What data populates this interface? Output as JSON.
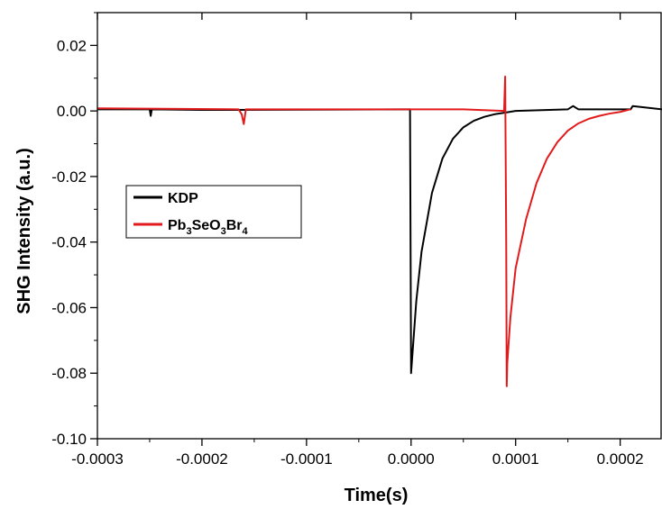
{
  "chart_data": {
    "type": "line",
    "xlabel": "Time(s)",
    "ylabel": "SHG Intensity (a.u.)",
    "xlim": [
      -0.0003,
      0.00024
    ],
    "ylim": [
      -0.1,
      0.03
    ],
    "x_ticks": [
      -0.0003,
      -0.0002,
      -0.0001,
      0.0,
      0.0001,
      0.0002
    ],
    "x_tick_labels": [
      "-0.0003",
      "-0.0002",
      "-0.0001",
      "0.0000",
      "0.0001",
      "0.0002"
    ],
    "y_ticks": [
      -0.1,
      -0.08,
      -0.06,
      -0.04,
      -0.02,
      0.0,
      0.02
    ],
    "y_tick_labels": [
      "-0.10",
      "-0.08",
      "-0.06",
      "-0.04",
      "-0.02",
      "0.00",
      "0.02"
    ],
    "grid": false,
    "legend": {
      "placement": "center-left"
    },
    "series": [
      {
        "name": "KDP",
        "legend_label": {
          "parts": [
            {
              "text": "KDP",
              "sub": false
            }
          ]
        },
        "color": "#000000",
        "x": [
          -0.0003,
          -0.00025,
          -0.000249,
          -0.000248,
          -0.0002,
          -0.0001,
          -1e-06,
          0.0,
          5e-06,
          1e-05,
          2e-05,
          3e-05,
          4e-05,
          5e-05,
          6e-05,
          7e-05,
          8e-05,
          9e-05,
          0.0001,
          0.00015,
          0.000155,
          0.00016,
          0.00021,
          0.000212,
          0.00024
        ],
        "y": [
          0.0005,
          0.0005,
          -0.0015,
          0.0005,
          0.0003,
          0.0004,
          0.0005,
          -0.08,
          -0.058,
          -0.043,
          -0.025,
          -0.0145,
          -0.0085,
          -0.005,
          -0.003,
          -0.0018,
          -0.001,
          -0.0005,
          0.0,
          0.0005,
          0.0015,
          0.0005,
          0.0005,
          0.0015,
          0.0005
        ]
      },
      {
        "name": "Pb3SeO3Br4",
        "legend_label": {
          "parts": [
            {
              "text": "Pb",
              "sub": false
            },
            {
              "text": "3",
              "sub": true
            },
            {
              "text": "SeO",
              "sub": false
            },
            {
              "text": "3",
              "sub": true
            },
            {
              "text": "Br",
              "sub": false
            },
            {
              "text": "4",
              "sub": true
            }
          ]
        },
        "color": "#e31a1c",
        "x": [
          -0.0003,
          -0.000165,
          -0.000162,
          -0.00016,
          -0.000158,
          -0.0001,
          -5e-05,
          0.0,
          5e-05,
          8.9e-05,
          9e-05,
          9.1e-05,
          9.15e-05,
          9.2e-05,
          9.5e-05,
          0.0001,
          0.00011,
          0.00012,
          0.00013,
          0.00014,
          0.00015,
          0.00016,
          0.00017,
          0.00018,
          0.00019,
          0.0002,
          0.00021
        ],
        "y": [
          0.0008,
          0.0005,
          -0.001,
          -0.004,
          0.0005,
          0.0005,
          0.0005,
          0.0005,
          0.0005,
          0.0,
          0.0105,
          -0.04,
          -0.084,
          -0.077,
          -0.063,
          -0.048,
          -0.033,
          -0.022,
          -0.0145,
          -0.0095,
          -0.006,
          -0.0038,
          -0.0024,
          -0.0015,
          -0.0008,
          -0.0003,
          0.0005
        ]
      }
    ]
  }
}
